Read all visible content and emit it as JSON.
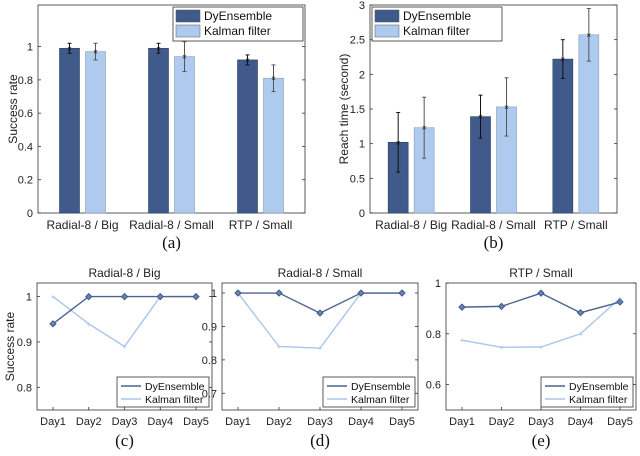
{
  "colors": {
    "DyEnsemble": "#3f5a8b",
    "Kalman filter": "#aecbef"
  },
  "chart_data": [
    {
      "panel": "(a)",
      "type": "bar",
      "ylabel": "Success rate",
      "ylim": [
        0,
        1.25
      ],
      "yticks": [
        "0",
        "0.2",
        "0.4",
        "0.6",
        "0.8",
        "1"
      ],
      "categories": [
        "Radial-8 / Big",
        "Radial-8 / Small",
        "RTP / Small"
      ],
      "legend": "top-right",
      "series": [
        {
          "name": "DyEnsemble",
          "values": [
            0.99,
            0.99,
            0.92
          ],
          "error": [
            0.03,
            0.03,
            0.03
          ]
        },
        {
          "name": "Kalman filter",
          "values": [
            0.97,
            0.94,
            0.81
          ],
          "error": [
            0.05,
            0.09,
            0.08
          ]
        }
      ]
    },
    {
      "panel": "(b)",
      "type": "bar",
      "ylabel": "Reach time (second)",
      "ylim": [
        0,
        3
      ],
      "yticks": [
        "0",
        "0.5",
        "1",
        "1.5",
        "2",
        "2.5",
        "3"
      ],
      "categories": [
        "Radial-8 / Big",
        "Radial-8 / Small",
        "RTP / Small"
      ],
      "legend": "top-left",
      "series": [
        {
          "name": "DyEnsemble",
          "values": [
            1.02,
            1.39,
            2.22
          ],
          "error": [
            0.43,
            0.31,
            0.28
          ]
        },
        {
          "name": "Kalman filter",
          "values": [
            1.23,
            1.53,
            2.57
          ],
          "error": [
            0.44,
            0.42,
            0.38
          ]
        }
      ]
    },
    {
      "panel": "(c)",
      "type": "line",
      "title": "Radial-8 / Big",
      "ylabel": "Success rate",
      "ylim": [
        0.75,
        1.03
      ],
      "yticks": [
        "0.8",
        "0.9",
        "1"
      ],
      "categories": [
        "Day1",
        "Day2",
        "Day3",
        "Day4",
        "Day5"
      ],
      "legend": "bottom-right",
      "series": [
        {
          "name": "DyEnsemble",
          "values": [
            0.94,
            1.0,
            1.0,
            1.0,
            1.0
          ]
        },
        {
          "name": "Kalman filter",
          "values": [
            1.0,
            0.94,
            0.89,
            1.0,
            1.0
          ]
        }
      ]
    },
    {
      "panel": "(d)",
      "type": "line",
      "title": "Radial-8 / Small",
      "ylabel": "",
      "ylim": [
        0.65,
        1.03
      ],
      "yticks": [
        "0.7",
        "0.8",
        "0.9",
        "1"
      ],
      "categories": [
        "Day1",
        "Day2",
        "Day3",
        "Day4",
        "Day5"
      ],
      "legend": "bottom-right",
      "series": [
        {
          "name": "DyEnsemble",
          "values": [
            1.0,
            1.0,
            0.94,
            1.0,
            1.0
          ]
        },
        {
          "name": "Kalman filter",
          "values": [
            1.0,
            0.84,
            0.835,
            1.0,
            1.0
          ]
        }
      ]
    },
    {
      "panel": "(e)",
      "type": "line",
      "title": "RTP / Small",
      "ylabel": "",
      "ylim": [
        0.5,
        1.0
      ],
      "yticks": [
        "0.6",
        "0.8",
        "1"
      ],
      "categories": [
        "Day1",
        "Day2",
        "Day3",
        "Day4",
        "Day5"
      ],
      "legend": "bottom-right",
      "series": [
        {
          "name": "DyEnsemble",
          "values": [
            0.905,
            0.908,
            0.96,
            0.883,
            0.925
          ]
        },
        {
          "name": "Kalman filter",
          "values": [
            0.775,
            0.747,
            0.748,
            0.8,
            0.94
          ]
        }
      ]
    }
  ]
}
